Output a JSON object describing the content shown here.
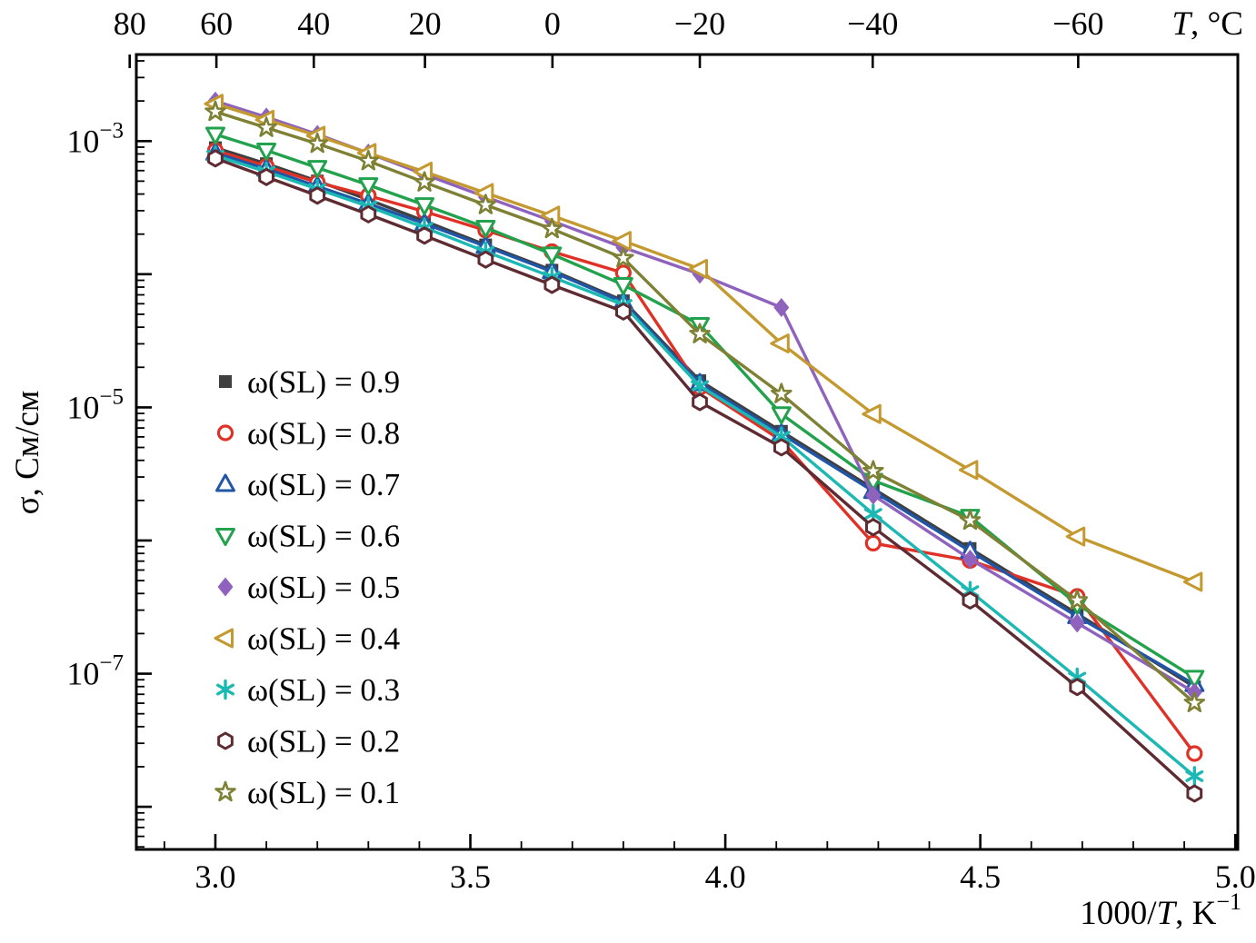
{
  "figure": {
    "ylabel": "σ, См/см",
    "xlabel_plain": "1000/T, K⁻¹",
    "top_axis_label_plain": "T, °C"
  },
  "chart_data": {
    "type": "line",
    "scale": "semilog-y",
    "title": "",
    "ylabel": "σ, См/см",
    "xlabel": "1000/T, K⁻¹",
    "top_axis_label": "T, °C",
    "xlabel_parts": {
      "pre": "1000/",
      "italic": "T",
      "mid": ", K",
      "sup": "−1"
    },
    "top_label_parts": {
      "italic": "T",
      "rest": ", °C"
    },
    "xlim": [
      2.845,
      5.005
    ],
    "ylim_log": [
      -8.32,
      -2.35
    ],
    "grid": false,
    "legend_position": "inside-left-middle",
    "x_ticks": [
      3.0,
      3.5,
      4.0,
      4.5,
      5.0
    ],
    "y_tick_exponents": [
      -3,
      -5,
      -7
    ],
    "top_ticks": [
      {
        "label": "80",
        "x": 2.832
      },
      {
        "label": "60",
        "x": 3.002
      },
      {
        "label": "40",
        "x": 3.193
      },
      {
        "label": "20",
        "x": 3.411
      },
      {
        "label": "0",
        "x": 3.661
      },
      {
        "label": "−20",
        "x": 3.95
      },
      {
        "label": "−40",
        "x": 4.289
      },
      {
        "label": "−60",
        "x": 4.692
      }
    ],
    "x": [
      3.0,
      3.1,
      3.2,
      3.3,
      3.41,
      3.53,
      3.66,
      3.8,
      3.95,
      4.11,
      4.29,
      4.48,
      4.69,
      4.92
    ],
    "series": [
      {
        "id": "w09",
        "name": "ω(SL) = 0.9",
        "marker": "square",
        "filled": true,
        "color": "#3f3f3f",
        "log10_sigma": [
          -3.05,
          -3.17,
          -3.3,
          -3.44,
          -3.6,
          -3.78,
          -3.97,
          -4.2,
          -4.8,
          -5.18,
          -5.61,
          -6.06,
          -6.55,
          -7.1
        ]
      },
      {
        "id": "w08",
        "name": "ω(SL) = 0.8",
        "marker": "circle",
        "filled": false,
        "color": "#e03127",
        "log10_sigma": [
          -3.07,
          -3.19,
          -3.31,
          -3.41,
          -3.53,
          -3.67,
          -3.83,
          -3.99,
          -4.85,
          -5.25,
          -6.02,
          -6.15,
          -6.42,
          -7.6
        ]
      },
      {
        "id": "w07",
        "name": "ω(SL) = 0.7",
        "marker": "triangle-up",
        "filled": false,
        "color": "#2156a6",
        "log10_sigma": [
          -3.09,
          -3.21,
          -3.34,
          -3.47,
          -3.62,
          -3.79,
          -3.98,
          -4.21,
          -4.82,
          -5.2,
          -5.63,
          -6.08,
          -6.57,
          -7.08
        ]
      },
      {
        "id": "w06",
        "name": "ω(SL) = 0.6",
        "marker": "triangle-down",
        "filled": false,
        "color": "#22a24c",
        "log10_sigma": [
          -2.95,
          -3.07,
          -3.2,
          -3.33,
          -3.48,
          -3.65,
          -3.85,
          -4.08,
          -4.38,
          -5.05,
          -5.55,
          -5.82,
          -6.48,
          -7.03
        ]
      },
      {
        "id": "w05",
        "name": "ω(SL) = 0.5",
        "marker": "diamond",
        "filled": true,
        "color": "#8e62bd",
        "log10_sigma": [
          -2.7,
          -2.82,
          -2.95,
          -3.09,
          -3.25,
          -3.42,
          -3.6,
          -3.8,
          -4.0,
          -4.25,
          -5.66,
          -6.14,
          -6.62,
          -7.14
        ]
      },
      {
        "id": "w04",
        "name": "ω(SL) = 0.4",
        "marker": "triangle-left",
        "filled": false,
        "color": "#c49a30",
        "log10_sigma": [
          -2.72,
          -2.84,
          -2.96,
          -3.09,
          -3.23,
          -3.39,
          -3.56,
          -3.75,
          -3.96,
          -4.52,
          -5.05,
          -5.47,
          -5.97,
          -6.31
        ]
      },
      {
        "id": "w03",
        "name": "ω(SL) = 0.3",
        "marker": "asterisk",
        "filled": false,
        "color": "#1cb8b4",
        "log10_sigma": [
          -3.11,
          -3.23,
          -3.36,
          -3.49,
          -3.65,
          -3.83,
          -4.02,
          -4.23,
          -4.84,
          -5.22,
          -5.8,
          -6.38,
          -7.03,
          -7.77
        ]
      },
      {
        "id": "w02",
        "name": "ω(SL) = 0.2",
        "marker": "hexagon",
        "filled": false,
        "color": "#5d2b31",
        "log10_sigma": [
          -3.13,
          -3.27,
          -3.41,
          -3.55,
          -3.71,
          -3.89,
          -4.08,
          -4.28,
          -4.96,
          -5.3,
          -5.9,
          -6.45,
          -7.1,
          -7.9
        ]
      },
      {
        "id": "w01",
        "name": "ω(SL) = 0.1",
        "marker": "star",
        "filled": false,
        "color": "#7e8134",
        "log10_sigma": [
          -2.78,
          -2.9,
          -3.02,
          -3.15,
          -3.31,
          -3.48,
          -3.66,
          -3.88,
          -4.45,
          -4.9,
          -5.48,
          -5.85,
          -6.45,
          -7.22
        ]
      }
    ]
  }
}
